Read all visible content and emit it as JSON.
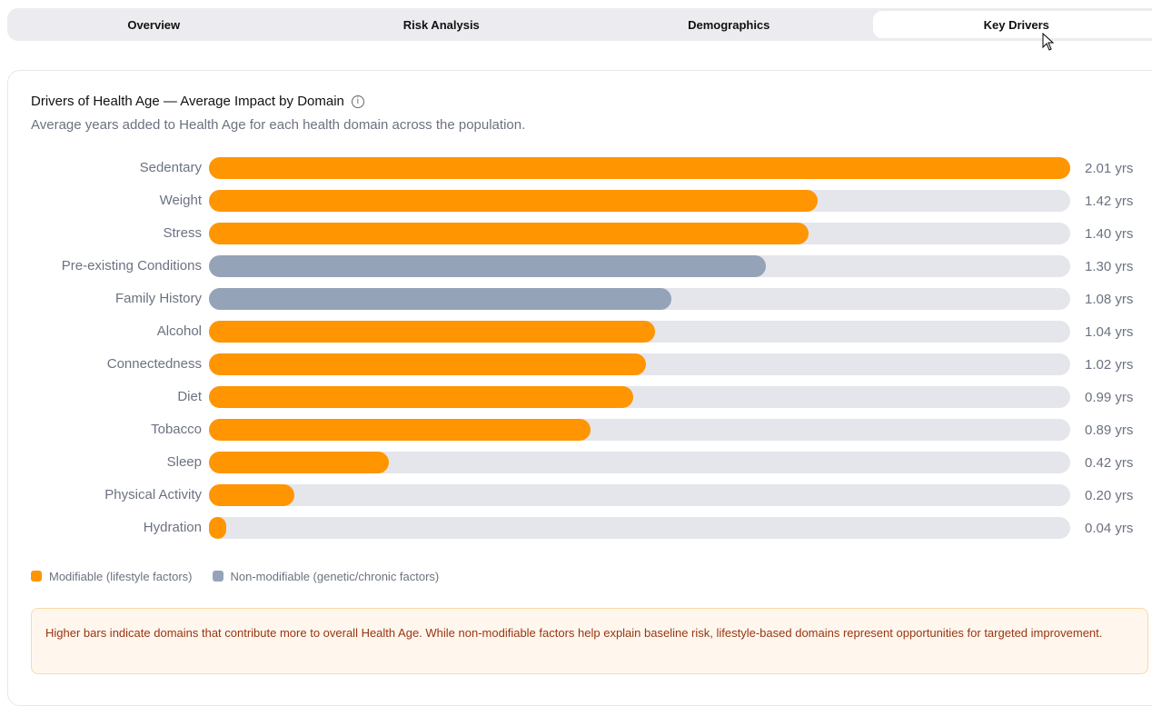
{
  "tabs": [
    {
      "label": "Overview"
    },
    {
      "label": "Risk Analysis"
    },
    {
      "label": "Demographics"
    },
    {
      "label": "Key Drivers",
      "active": true
    }
  ],
  "colors": {
    "modifiable": "#ff9500",
    "non_modifiable": "#94a3b8",
    "track": "#e5e6eb"
  },
  "chart_data": {
    "type": "bar",
    "orientation": "horizontal",
    "title": "Drivers of Health Age — Average Impact by Domain",
    "subtitle": "Average years added to Health Age for each health domain across the population.",
    "xlim": [
      0,
      2.01
    ],
    "unit": "yrs",
    "categories": [
      "Sedentary",
      "Weight",
      "Stress",
      "Pre-existing Conditions",
      "Family History",
      "Alcohol",
      "Connectedness",
      "Diet",
      "Tobacco",
      "Sleep",
      "Physical Activity",
      "Hydration"
    ],
    "values": [
      2.01,
      1.42,
      1.4,
      1.3,
      1.08,
      1.04,
      1.02,
      0.99,
      0.89,
      0.42,
      0.2,
      0.04
    ],
    "value_labels": [
      "2.01 yrs",
      "1.42 yrs",
      "1.40 yrs",
      "1.30 yrs",
      "1.08 yrs",
      "1.04 yrs",
      "1.02 yrs",
      "0.99 yrs",
      "0.89 yrs",
      "0.42 yrs",
      "0.20 yrs",
      "0.04 yrs"
    ],
    "types": [
      "modifiable",
      "modifiable",
      "modifiable",
      "non_modifiable",
      "non_modifiable",
      "modifiable",
      "modifiable",
      "modifiable",
      "modifiable",
      "modifiable",
      "modifiable",
      "modifiable"
    ],
    "legend": [
      {
        "label": "Modifiable (lifestyle factors)",
        "type": "modifiable"
      },
      {
        "label": "Non-modifiable (genetic/chronic factors)",
        "type": "non_modifiable"
      }
    ],
    "legend_position": "bottom-left"
  },
  "note": "Higher bars indicate domains that contribute more to overall Health Age. While non-modifiable factors help explain baseline risk, lifestyle-based domains represent opportunities for targeted improvement."
}
